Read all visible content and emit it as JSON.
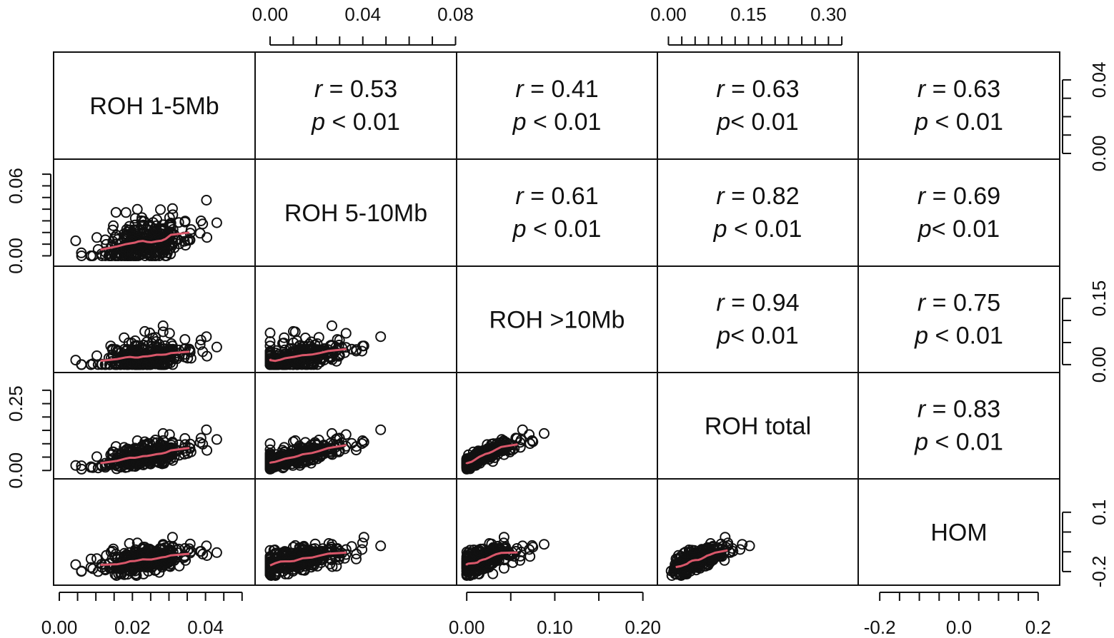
{
  "chart_data": {
    "type": "scatter-matrix",
    "variables": [
      "ROH 1-5Mb",
      "ROH 5-10Mb",
      "ROH >10Mb",
      "ROH total",
      "HOM"
    ],
    "ranges": [
      [
        0.0,
        0.052
      ],
      [
        -0.004,
        0.078
      ],
      [
        -0.005,
        0.21
      ],
      [
        -0.01,
        0.345
      ],
      [
        -0.24,
        0.24
      ]
    ],
    "axes": {
      "top": [
        {
          "col": 1,
          "ticks": [
            0.0,
            0.01,
            0.02,
            0.03,
            0.04,
            0.05,
            0.06,
            0.07,
            0.08
          ],
          "labels": [
            "0.00",
            "0.04",
            "0.08"
          ]
        },
        {
          "col": 3,
          "ticks": [
            0.0,
            0.025,
            0.05,
            0.075,
            0.1,
            0.125,
            0.15,
            0.175,
            0.2,
            0.225,
            0.25,
            0.275,
            0.3,
            0.325
          ],
          "labels": [
            "0.00",
            "0.15",
            "0.30"
          ]
        }
      ],
      "bottom": [
        {
          "col": 0,
          "ticks": [
            0.0,
            0.005,
            0.01,
            0.015,
            0.02,
            0.025,
            0.03,
            0.035,
            0.04,
            0.045,
            0.05
          ],
          "labels": [
            "0.00",
            "0.02",
            "0.04"
          ]
        },
        {
          "col": 2,
          "ticks": [
            0.0,
            0.05,
            0.1,
            0.15,
            0.2
          ],
          "labels": [
            "0.00",
            "0.10",
            "0.20"
          ]
        },
        {
          "col": 4,
          "ticks": [
            -0.2,
            -0.15,
            -0.1,
            -0.05,
            0.0,
            0.05,
            0.1,
            0.15,
            0.2
          ],
          "labels": [
            "-0.2",
            "0.0",
            "0.2"
          ]
        }
      ],
      "left": [
        {
          "row": 1,
          "ticks": [
            0.0,
            0.01,
            0.02,
            0.03,
            0.04,
            0.05,
            0.06,
            0.07
          ],
          "labels": [
            "0.00",
            "0.06"
          ]
        },
        {
          "row": 3,
          "ticks": [
            0.0,
            0.05,
            0.1,
            0.15,
            0.2,
            0.25,
            0.3
          ],
          "labels": [
            "0.00",
            "0.25"
          ]
        }
      ],
      "right": [
        {
          "row": 0,
          "ticks": [
            0.0,
            0.01,
            0.02,
            0.03,
            0.04
          ],
          "labels": [
            "0.00",
            "0.04"
          ]
        },
        {
          "row": 2,
          "ticks": [
            0.0,
            0.05,
            0.1,
            0.15
          ],
          "labels": [
            "0.00",
            "0.15"
          ]
        },
        {
          "row": 4,
          "ticks": [
            -0.2,
            -0.1,
            0.0,
            0.1
          ],
          "labels": [
            "-0.2",
            "0.1"
          ]
        }
      ]
    },
    "correlations": [
      {
        "row": 0,
        "col": 1,
        "r": "0.53",
        "p_op": " < ",
        "p": "0.01"
      },
      {
        "row": 0,
        "col": 2,
        "r": "0.41",
        "p_op": " < ",
        "p": "0.01"
      },
      {
        "row": 0,
        "col": 3,
        "r": "0.63",
        "p_op": "< ",
        "p": "0.01"
      },
      {
        "row": 0,
        "col": 4,
        "r": "0.63",
        "p_op": " < ",
        "p": "0.01"
      },
      {
        "row": 1,
        "col": 2,
        "r": "0.61",
        "p_op": " < ",
        "p": "0.01"
      },
      {
        "row": 1,
        "col": 3,
        "r": "0.82",
        "p_op": " < ",
        "p": "0.01"
      },
      {
        "row": 1,
        "col": 4,
        "r": "0.69",
        "p_op": "< ",
        "p": "0.01"
      },
      {
        "row": 2,
        "col": 3,
        "r": "0.94",
        "p_op": "< ",
        "p": "0.01"
      },
      {
        "row": 2,
        "col": 4,
        "r": "0.75",
        "p_op": " < ",
        "p": "0.01"
      },
      {
        "row": 3,
        "col": 4,
        "r": "0.83",
        "p_op": " < ",
        "p": "0.01"
      }
    ],
    "stat_labels": {
      "r": "r",
      "p": "p",
      "eq": " = "
    },
    "points": {
      "count": 300,
      "seed": 7,
      "marker": "open-circle"
    },
    "trend_line": {
      "type": "loess",
      "color": "#d9576a"
    },
    "point_color": "#111111"
  }
}
